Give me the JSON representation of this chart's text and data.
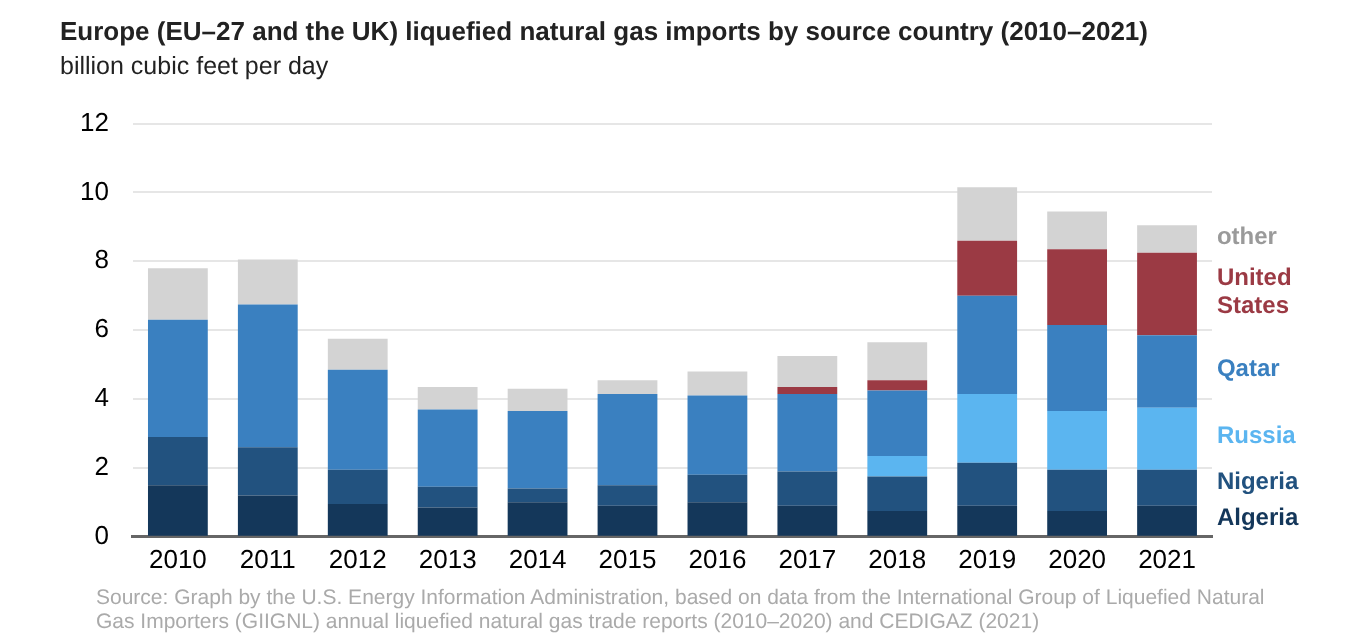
{
  "chart_data": {
    "type": "bar",
    "stacked": true,
    "title": "Europe (EU–27 and the UK) liquefied natural gas imports by source country (2010–2021)",
    "ylabel": "billion cubic feet per day",
    "categories": [
      "2010",
      "2011",
      "2012",
      "2013",
      "2014",
      "2015",
      "2016",
      "2017",
      "2018",
      "2019",
      "2020",
      "2021"
    ],
    "series": [
      {
        "name": "Algeria",
        "color": "#14375a",
        "values": [
          1.5,
          1.2,
          0.95,
          0.85,
          1.0,
          0.9,
          1.0,
          0.9,
          0.75,
          0.9,
          0.75,
          0.9
        ]
      },
      {
        "name": "Nigeria",
        "color": "#22527f",
        "values": [
          1.4,
          1.4,
          1.0,
          0.6,
          0.4,
          0.6,
          0.8,
          1.0,
          1.0,
          1.25,
          1.2,
          1.05
        ]
      },
      {
        "name": "Russia",
        "color": "#5bb5f0",
        "values": [
          0,
          0,
          0,
          0,
          0,
          0,
          0,
          0,
          0.6,
          2.0,
          1.7,
          1.8
        ]
      },
      {
        "name": "Qatar",
        "color": "#3a80c0",
        "values": [
          3.4,
          4.15,
          2.9,
          2.25,
          2.25,
          2.65,
          2.3,
          2.25,
          1.9,
          2.85,
          2.5,
          2.1
        ]
      },
      {
        "name": "United States",
        "color": "#9b3a44",
        "values": [
          0,
          0,
          0,
          0,
          0,
          0,
          0,
          0.2,
          0.3,
          1.6,
          2.2,
          2.4
        ]
      },
      {
        "name": "other",
        "color": "#d3d3d3",
        "values": [
          1.5,
          1.3,
          0.9,
          0.65,
          0.65,
          0.4,
          0.7,
          0.9,
          1.1,
          1.55,
          1.1,
          0.8
        ]
      }
    ],
    "ylim": [
      0,
      12
    ],
    "yticks": [
      0,
      2,
      4,
      6,
      8,
      10,
      12
    ],
    "grid": "y",
    "legend": false,
    "annotations": [
      "Source: Graph by the U.S. Energy Information Administration, based on data from the International Group of Liquefied Natural Gas Importers (GIIGNL) annual liquefied natural gas trade reports (2010–2020) and CEDIGAZ (2021)"
    ]
  }
}
